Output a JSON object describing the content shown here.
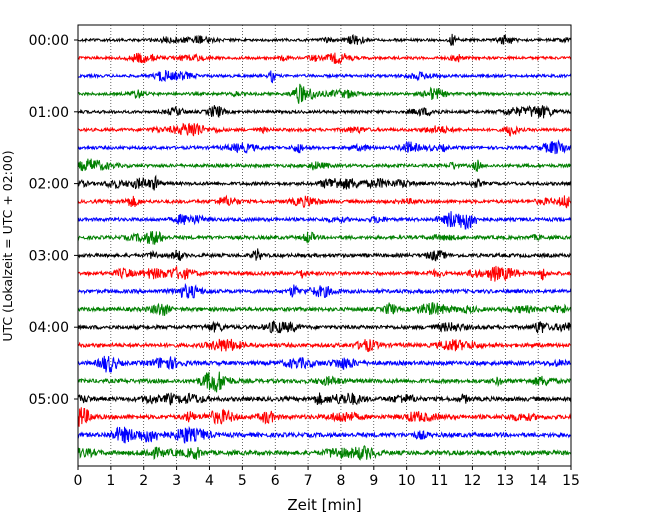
{
  "chart_data": {
    "type": "helicorder",
    "xlabel": "Zeit  [min]",
    "ylabel": "UTC (Lokalzeit = UTC + 02:00)",
    "xlim": [
      0,
      15
    ],
    "x_ticks": [
      0,
      1,
      2,
      3,
      4,
      5,
      6,
      7,
      8,
      9,
      10,
      11,
      12,
      13,
      14,
      15
    ],
    "y_tick_labels": [
      "00:00",
      "01:00",
      "02:00",
      "03:00",
      "04:00",
      "05:00"
    ],
    "trace_interval_min": 15,
    "trace_count": 24,
    "trace_colors": [
      "#000000",
      "#ff0000",
      "#0000ff",
      "#008000"
    ],
    "grid": "vertical dotted at each minute"
  }
}
